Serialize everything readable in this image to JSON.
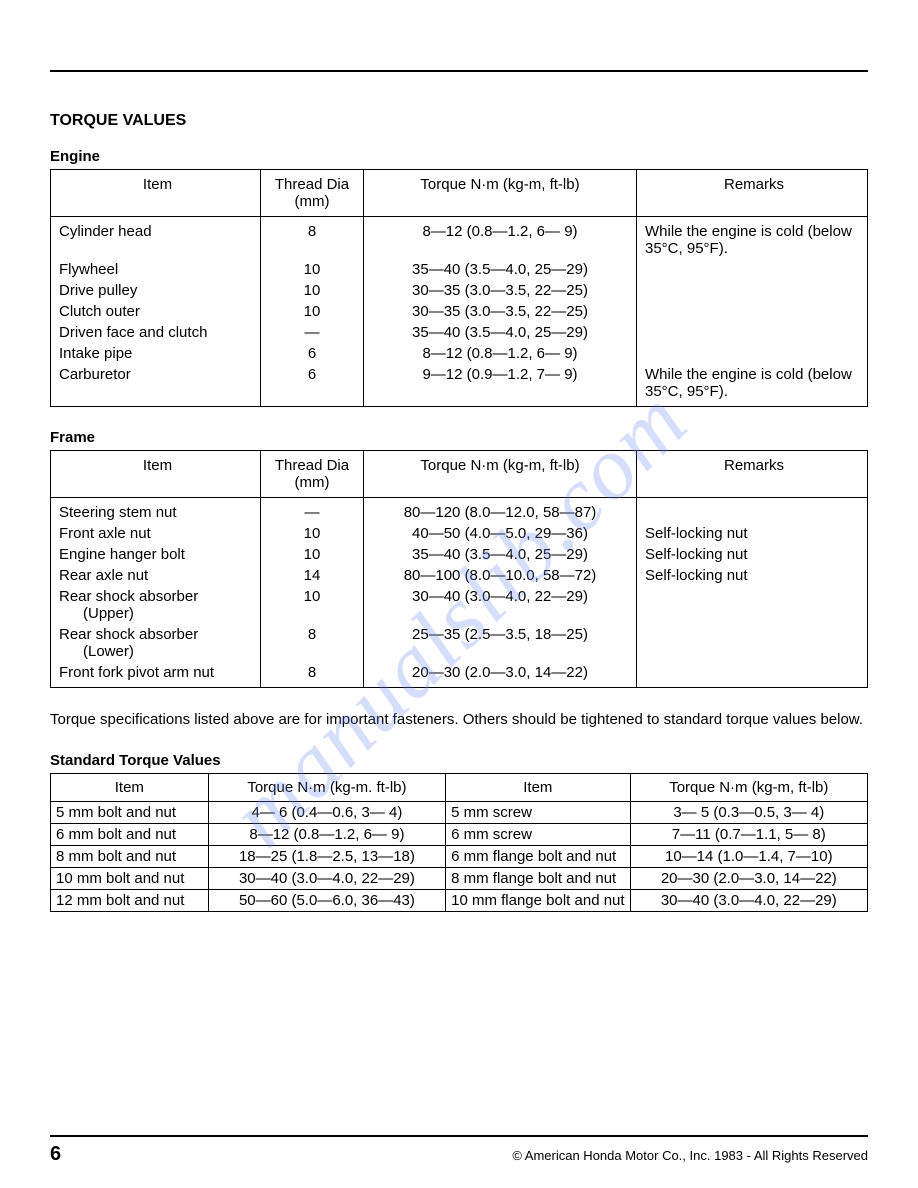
{
  "title": "TORQUE VALUES",
  "watermark": "manualslib.com",
  "engine": {
    "heading": "Engine",
    "columns": [
      "Item",
      "Thread Dia (mm)",
      "Torque N·m (kg-m, ft-lb)",
      "Remarks"
    ],
    "rows": [
      {
        "item": "Cylinder head",
        "dia": "8",
        "torque": "8—12 (0.8—1.2,   6—  9)",
        "remarks": "While the engine is cold (below 35°C, 95°F)."
      },
      {
        "item": "Flywheel",
        "dia": "10",
        "torque": "35—40 (3.5—4.0, 25—29)",
        "remarks": ""
      },
      {
        "item": "Drive pulley",
        "dia": "10",
        "torque": "30—35 (3.0—3.5, 22—25)",
        "remarks": ""
      },
      {
        "item": "Clutch outer",
        "dia": "10",
        "torque": "30—35 (3.0—3.5, 22—25)",
        "remarks": ""
      },
      {
        "item": "Driven face and clutch",
        "dia": "—",
        "torque": "35—40 (3.5—4.0, 25—29)",
        "remarks": ""
      },
      {
        "item": "Intake pipe",
        "dia": "6",
        "torque": "8—12 (0.8—1.2,   6—  9)",
        "remarks": ""
      },
      {
        "item": "Carburetor",
        "dia": "6",
        "torque": "9—12 (0.9—1.2,   7—  9)",
        "remarks": "While the engine is cold (below 35°C, 95°F)."
      }
    ]
  },
  "frame": {
    "heading": "Frame",
    "columns": [
      "Item",
      "Thread Dia (mm)",
      "Torque N·m (kg-m, ft-lb)",
      "Remarks"
    ],
    "rows": [
      {
        "item": "Steering stem nut",
        "dia": "—",
        "torque": "80—120 (8.0—12.0, 58—87)",
        "remarks": ""
      },
      {
        "item": "Front axle nut",
        "dia": "10",
        "torque": "40—50 (4.0—5.0, 29—36)",
        "remarks": "Self-locking nut"
      },
      {
        "item": "Engine hanger bolt",
        "dia": "10",
        "torque": "35—40 (3.5—4.0, 25—29)",
        "remarks": "Self-locking nut"
      },
      {
        "item": "Rear axle nut",
        "dia": "14",
        "torque": "80—100 (8.0—10.0, 58—72)",
        "remarks": "Self-locking nut"
      },
      {
        "item": "Rear shock absorber",
        "sub": "(Upper)",
        "dia": "10",
        "torque": "30—40 (3.0—4.0, 22—29)",
        "remarks": ""
      },
      {
        "item": "Rear shock absorber",
        "sub": "(Lower)",
        "dia": "8",
        "torque": "25—35 (2.5—3.5, 18—25)",
        "remarks": ""
      },
      {
        "item": "Front fork pivot arm nut",
        "dia": "8",
        "torque": "20—30 (2.0—3.0, 14—22)",
        "remarks": ""
      }
    ]
  },
  "note": "Torque specifications listed above are for important fasteners. Others should be tightened to standard torque values below.",
  "standard": {
    "heading": "Standard Torque Values",
    "columns": [
      "Item",
      "Torque N·m (kg-m. ft-lb)",
      "Item",
      "Torque N·m (kg-m, ft-lb)"
    ],
    "rows": [
      {
        "i1": "5 mm bolt and nut",
        "t1": "4—  6 (0.4—0.6,   3—  4)",
        "i2": "5 mm screw",
        "t2": "3—  5 (0.3—0.5,   3—  4)"
      },
      {
        "i1": "6 mm bolt and nut",
        "t1": "8—12 (0.8—1.2,   6—  9)",
        "i2": "6 mm screw",
        "t2": "7—11 (0.7—1.1,   5—  8)"
      },
      {
        "i1": "8 mm bolt and nut",
        "t1": "18—25 (1.8—2.5, 13—18)",
        "i2": "6 mm flange bolt and nut",
        "t2": "10—14 (1.0—1.4,   7—10)"
      },
      {
        "i1": "10 mm bolt and nut",
        "t1": "30—40 (3.0—4.0, 22—29)",
        "i2": "8 mm flange bolt and nut",
        "t2": "20—30 (2.0—3.0, 14—22)"
      },
      {
        "i1": "12 mm bolt and nut",
        "t1": "50—60 (5.0—6.0, 36—43)",
        "i2": "10 mm flange bolt and nut",
        "t2": "30—40 (3.0—4.0, 22—29)"
      }
    ]
  },
  "footer": {
    "page": "6",
    "copyright": "© American Honda Motor Co., Inc. 1983 - All Rights Reserved"
  },
  "colors": {
    "text": "#000000",
    "background": "#ffffff",
    "rule": "#000000",
    "watermark": "#6b8cf2"
  }
}
